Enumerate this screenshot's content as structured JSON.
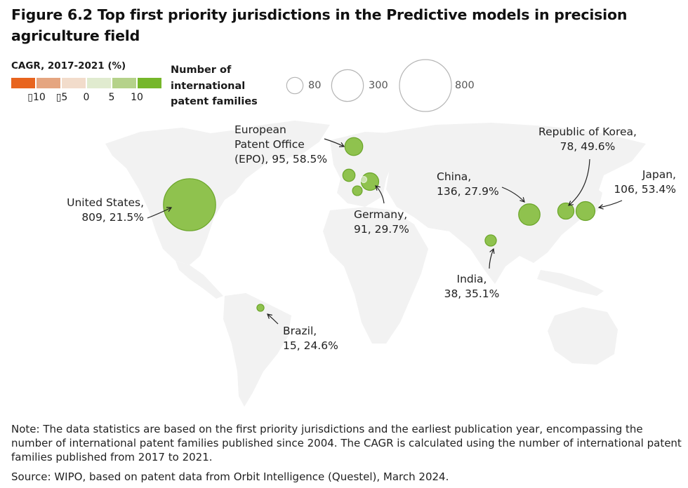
{
  "title": "Figure 6.2 Top first priority jurisdictions in the Predictive models in precision agriculture field",
  "legend_cagr": {
    "title": "CAGR, 2017-2021 (%)",
    "colors": [
      "#E8641E",
      "#E5A580",
      "#F2DCCB",
      "#E0EBCF",
      "#B5D28A",
      "#76B72A"
    ],
    "ticks": [
      "▯10",
      "▯5",
      "0",
      "5",
      "10"
    ]
  },
  "legend_size": {
    "title_lines": [
      "Number of",
      "international",
      "patent families"
    ],
    "items": [
      {
        "value": 80,
        "label": "80"
      },
      {
        "value": 300,
        "label": "300"
      },
      {
        "value": 800,
        "label": "800"
      }
    ]
  },
  "colors": {
    "bubble_fill": "#8FC24E",
    "bubble_stroke": "#6BA52A",
    "land": "#F2F2F2"
  },
  "chart_data": {
    "type": "bubble-map",
    "title": "Top first priority jurisdictions in the Predictive models in precision agriculture field",
    "size_variable": "Number of international patent families",
    "color_variable": "CAGR, 2017-2021 (%)",
    "points": [
      {
        "name": "United States",
        "families": 809,
        "cagr": 21.5,
        "labeled": true,
        "label_lines": [
          "United States,",
          "809, 21.5%"
        ]
      },
      {
        "name": "European Patent Office (EPO)",
        "families": 95,
        "cagr": 58.5,
        "labeled": true,
        "label_lines": [
          "European",
          "Patent Office",
          "(EPO), 95, 58.5%"
        ]
      },
      {
        "name": "Germany",
        "families": 91,
        "cagr": 29.7,
        "labeled": true,
        "label_lines": [
          "Germany,",
          "91, 29.7%"
        ]
      },
      {
        "name": "China",
        "families": 136,
        "cagr": 27.9,
        "labeled": true,
        "label_lines": [
          "China,",
          "136, 27.9%"
        ]
      },
      {
        "name": "Republic of Korea",
        "families": 78,
        "cagr": 49.6,
        "labeled": true,
        "label_lines": [
          "Republic of Korea,",
          "78, 49.6%"
        ]
      },
      {
        "name": "Japan",
        "families": 106,
        "cagr": 53.4,
        "labeled": true,
        "label_lines": [
          "Japan,",
          "106, 53.4%"
        ]
      },
      {
        "name": "India",
        "families": 38,
        "cagr": 35.1,
        "labeled": true,
        "label_lines": [
          "India,",
          "38, 35.1%"
        ]
      },
      {
        "name": "Brazil",
        "families": 15,
        "cagr": 24.6,
        "labeled": true,
        "label_lines": [
          "Brazil,",
          "15, 24.6%"
        ]
      },
      {
        "name": "unlabeled-europe-1",
        "families": 45,
        "cagr": null,
        "labeled": false
      },
      {
        "name": "unlabeled-europe-2",
        "families": 28,
        "cagr": null,
        "labeled": false
      },
      {
        "name": "unlabeled-europe-3",
        "families": 12,
        "cagr": null,
        "labeled": false,
        "faded": true
      }
    ]
  },
  "note": "Note: The data statistics are based on the first priority jurisdictions and the earliest publication year, encompassing the number of international patent families published since 2004. The CAGR is calculated using the number of international patent families published from 2017 to 2021.",
  "source": "Source: WIPO, based on patent data from Orbit Intelligence (Questel), March 2024."
}
